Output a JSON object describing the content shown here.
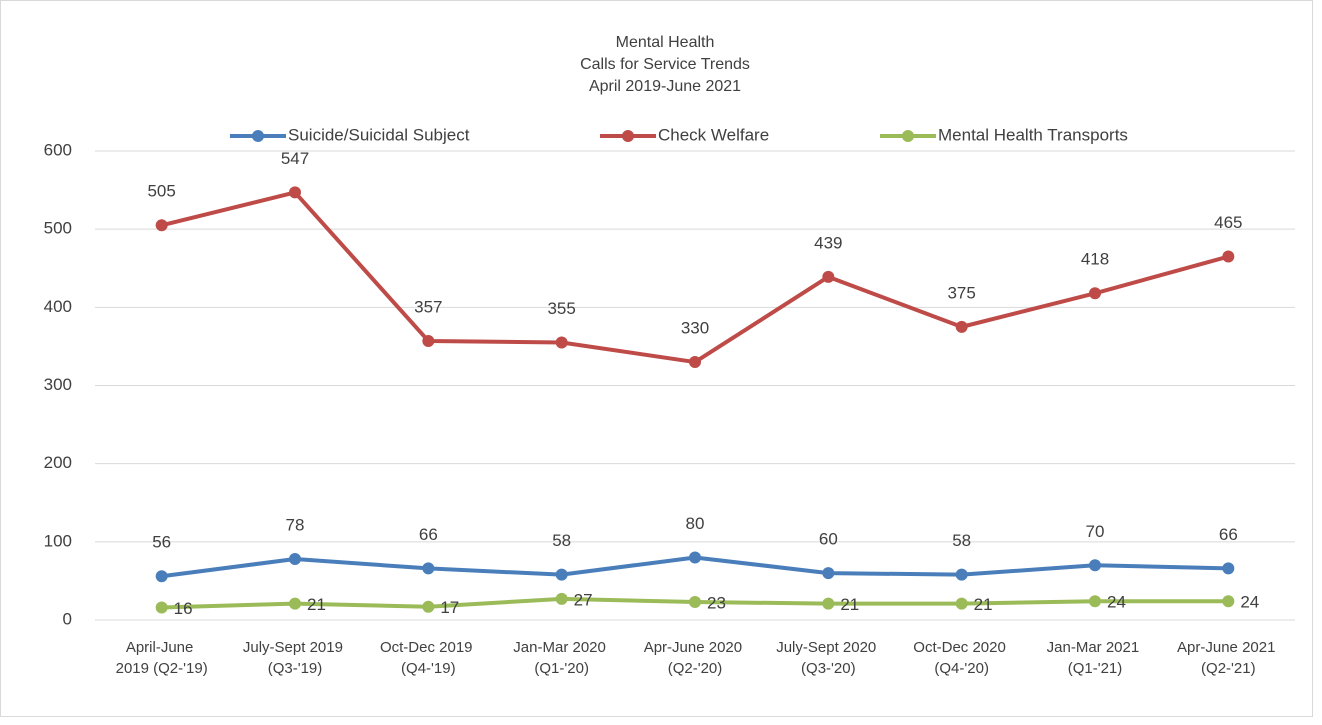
{
  "chart_data": {
    "type": "line",
    "title": [
      "Mental Health",
      "Calls for Service Trends",
      "April 2019-June 2021"
    ],
    "categories": [
      "April-June 2019 (Q2-'19)",
      "July-Sept 2019 (Q3-'19)",
      "Oct-Dec 2019 (Q4-'19)",
      "Jan-Mar 2020 (Q1-'20)",
      "Apr-June 2020 (Q2-'20)",
      "July-Sept 2020 (Q3-'20)",
      "Oct-Dec 2020 (Q4-'20)",
      "Jan-Mar 2021 (Q1-'21)",
      "Apr-June 2021 (Q2-'21)"
    ],
    "series": [
      {
        "name": "Suicide/Suicidal Subject",
        "color": "#4a7ebb",
        "values": [
          56,
          78,
          66,
          58,
          80,
          60,
          58,
          70,
          66
        ]
      },
      {
        "name": "Check Welfare",
        "color": "#be4b48",
        "values": [
          505,
          547,
          357,
          355,
          330,
          439,
          375,
          418,
          465
        ]
      },
      {
        "name": "Mental Health Transports",
        "color": "#9bbb59",
        "values": [
          16,
          21,
          17,
          27,
          23,
          21,
          21,
          24,
          24
        ]
      }
    ],
    "ylim": [
      0,
      600
    ],
    "yticks": [
      0,
      100,
      200,
      300,
      400,
      500,
      600
    ],
    "grid": true,
    "legend": "top"
  }
}
